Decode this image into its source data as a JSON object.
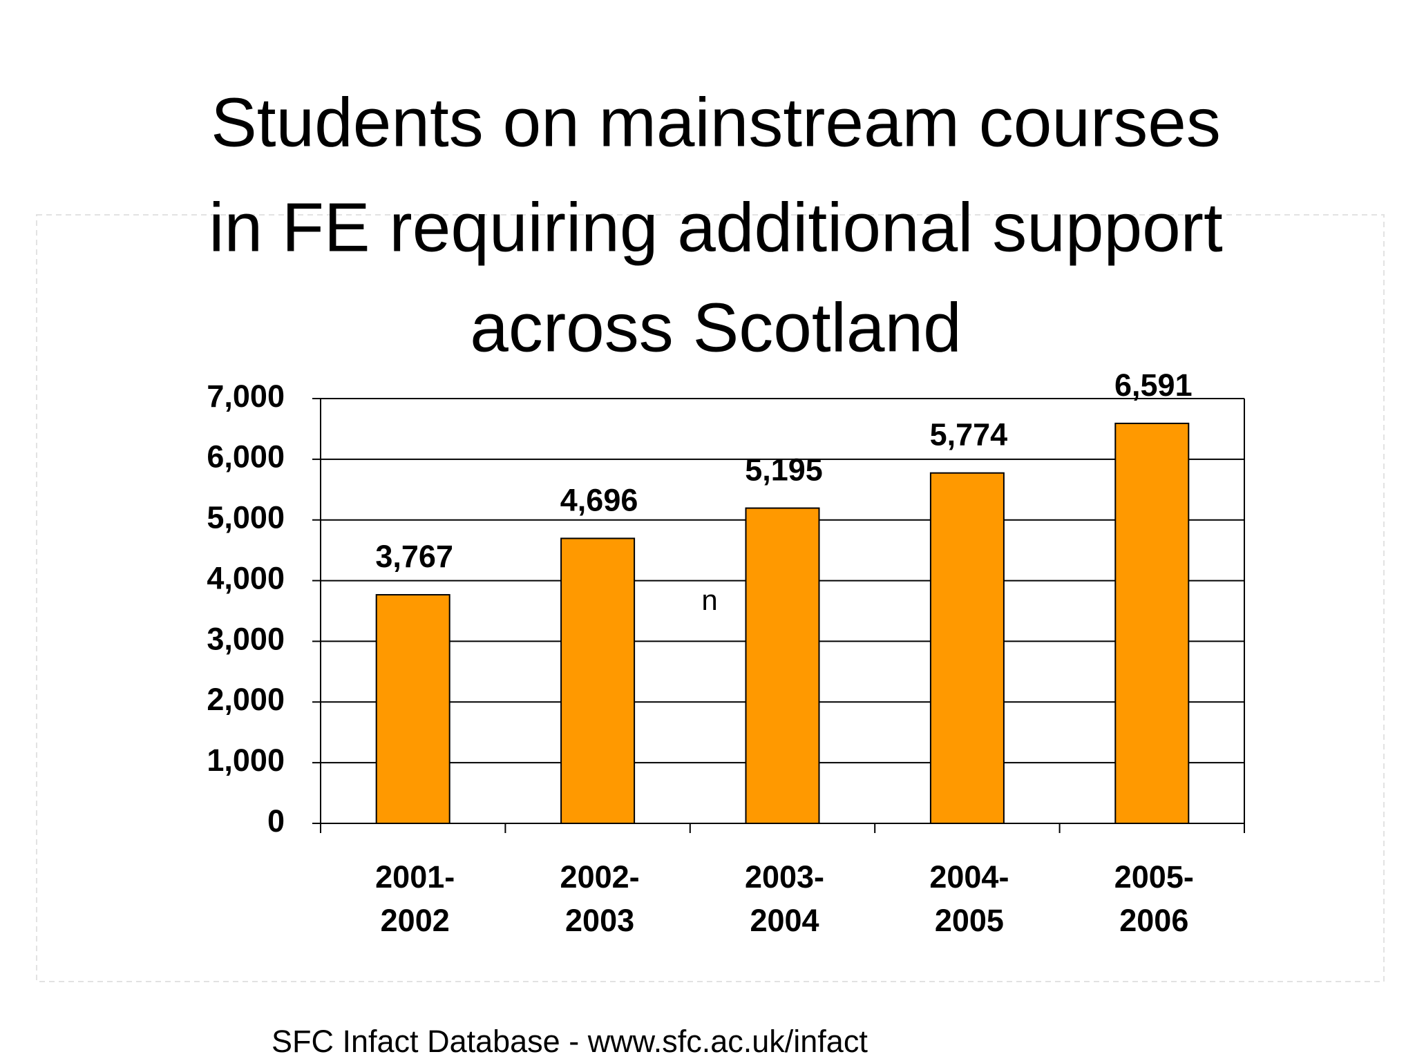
{
  "chart_data": {
    "type": "bar",
    "title": [
      "Students on mainstream courses",
      "in FE requiring additional support",
      "across Scotland"
    ],
    "categories": [
      "2001-2002",
      "2002-2003",
      "2003-2004",
      "2004-2005",
      "2005-2006"
    ],
    "values": [
      3767,
      4696,
      5195,
      5774,
      6591
    ],
    "value_labels": [
      "3,767",
      "4,696",
      "5,195",
      "5,774",
      "6,591"
    ],
    "color": "#ff9900",
    "ylim": [
      0,
      7000
    ],
    "yticks": [
      0,
      {
        "value": 1000,
        "label": "1,000"
      },
      {
        "value": 2000,
        "label": "2,000"
      },
      {
        "value": 3000,
        "label": "3,000"
      },
      {
        "value": 4000,
        "label": "4,000"
      },
      {
        "value": 5000,
        "label": "5,000"
      },
      {
        "value": 6000,
        "label": "6,000"
      },
      {
        "value": 7000,
        "label": "7,000"
      }
    ],
    "grid": true,
    "annotation": "n",
    "footer": "SFC Infact Database  - www.sfc.ac.uk/infact"
  }
}
